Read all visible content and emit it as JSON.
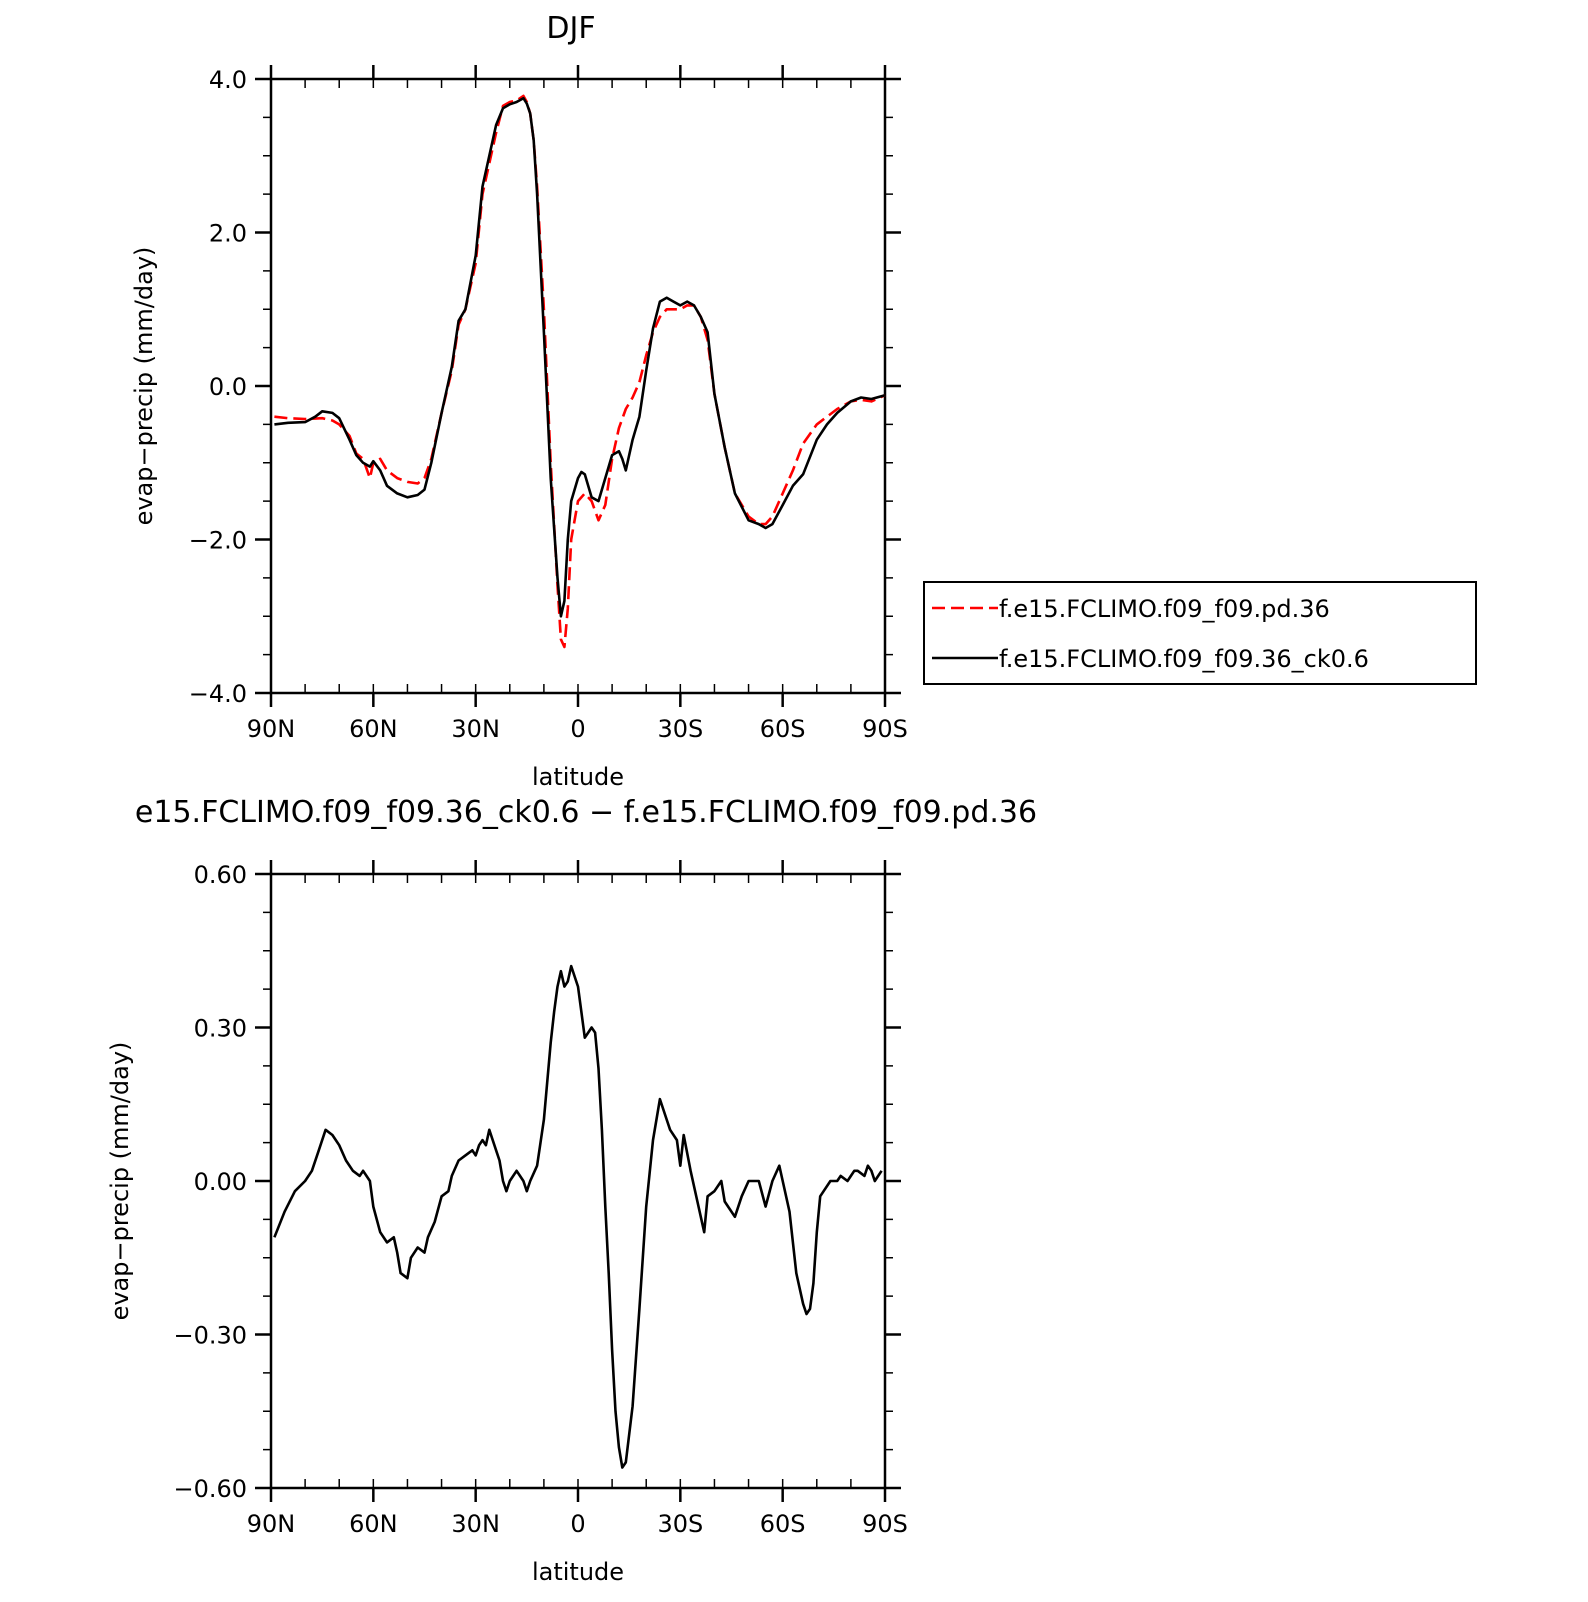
{
  "figure": {
    "top_title": "DJF",
    "bottom_title": "e15.FCLIMO.f09_f09.36_ck0.6 − f.e15.FCLIMO.f09_f09.pd.36"
  },
  "chart_data": [
    {
      "type": "line",
      "title": "DJF",
      "xlabel": "latitude",
      "ylabel": "evap−precip (mm/day)",
      "xlim": [
        90,
        -90
      ],
      "ylim": [
        -4.0,
        4.0
      ],
      "x_ticks": [
        90,
        60,
        30,
        0,
        -30,
        -60,
        -90
      ],
      "x_tick_labels": [
        "90N",
        "60N",
        "30N",
        "0",
        "30S",
        "60S",
        "90S"
      ],
      "y_ticks": [
        4.0,
        2.0,
        0.0,
        -2.0,
        -4.0
      ],
      "y_tick_labels": [
        "4.0",
        "2.0",
        "0.0",
        "−2.0",
        "−4.0"
      ],
      "grid": false,
      "legend_position": "right",
      "series": [
        {
          "name": "f.e15.FCLIMO.f09_f09.pd.36",
          "color": "#ff0000",
          "dash": "dashed",
          "x": [
            89,
            85,
            80,
            75,
            72,
            70,
            67,
            65,
            63,
            61,
            60,
            58,
            56,
            53,
            50,
            47,
            45,
            43,
            40,
            37,
            35,
            33,
            30,
            28,
            26,
            24,
            22,
            20,
            18,
            16,
            15,
            14,
            13,
            12,
            10,
            8,
            6,
            5,
            4,
            3,
            2,
            0,
            -2,
            -4,
            -6,
            -8,
            -10,
            -12,
            -14,
            -16,
            -18,
            -20,
            -22,
            -24,
            -26,
            -28,
            -30,
            -32,
            -34,
            -36,
            -38,
            -40,
            -43,
            -46,
            -50,
            -53,
            -55,
            -57,
            -60,
            -63,
            -66,
            -70,
            -73,
            -76,
            -80,
            -83,
            -86,
            -90
          ],
          "y": [
            -0.4,
            -0.42,
            -0.43,
            -0.42,
            -0.45,
            -0.5,
            -0.65,
            -0.88,
            -0.95,
            -1.2,
            -1.0,
            -0.95,
            -1.1,
            -1.2,
            -1.25,
            -1.27,
            -1.2,
            -0.95,
            -0.35,
            0.2,
            0.8,
            1.0,
            1.6,
            2.5,
            2.9,
            3.3,
            3.65,
            3.7,
            3.72,
            3.78,
            3.7,
            3.55,
            3.2,
            2.6,
            1.0,
            -1.0,
            -2.6,
            -3.3,
            -3.4,
            -2.9,
            -2.0,
            -1.5,
            -1.4,
            -1.5,
            -1.75,
            -1.55,
            -0.95,
            -0.55,
            -0.3,
            -0.15,
            0.05,
            0.4,
            0.7,
            0.9,
            1.0,
            1.0,
            1.0,
            1.05,
            1.05,
            0.9,
            0.6,
            -0.1,
            -0.8,
            -1.4,
            -1.7,
            -1.8,
            -1.8,
            -1.7,
            -1.4,
            -1.1,
            -0.75,
            -0.5,
            -0.4,
            -0.3,
            -0.2,
            -0.18,
            -0.2,
            -0.12
          ]
        },
        {
          "name": "f.e15.FCLIMO.f09_f09.36_ck0.6",
          "color": "#000000",
          "dash": "solid",
          "x": [
            89,
            85,
            80,
            77,
            75,
            72,
            70,
            67,
            65,
            63,
            61,
            60,
            58,
            56,
            53,
            50,
            47,
            45,
            43,
            40,
            37,
            35,
            33,
            30,
            28,
            26,
            24,
            22,
            20,
            18,
            16,
            15,
            14,
            13,
            12,
            10,
            8,
            6,
            5,
            4,
            3,
            2,
            0,
            -1,
            -2,
            -4,
            -6,
            -8,
            -10,
            -12,
            -13,
            -14,
            -16,
            -18,
            -20,
            -22,
            -24,
            -26,
            -28,
            -30,
            -32,
            -34,
            -36,
            -38,
            -40,
            -43,
            -46,
            -50,
            -53,
            -55,
            -57,
            -60,
            -63,
            -66,
            -70,
            -73,
            -76,
            -80,
            -83,
            -86,
            -90
          ],
          "y": [
            -0.5,
            -0.48,
            -0.47,
            -0.4,
            -0.33,
            -0.35,
            -0.42,
            -0.7,
            -0.9,
            -1.0,
            -1.05,
            -0.98,
            -1.1,
            -1.3,
            -1.4,
            -1.45,
            -1.42,
            -1.35,
            -1.0,
            -0.35,
            0.25,
            0.85,
            1.0,
            1.7,
            2.6,
            3.0,
            3.4,
            3.62,
            3.67,
            3.7,
            3.75,
            3.68,
            3.55,
            3.2,
            2.5,
            0.7,
            -1.2,
            -2.5,
            -3.0,
            -2.8,
            -2.0,
            -1.5,
            -1.2,
            -1.12,
            -1.15,
            -1.45,
            -1.5,
            -1.2,
            -0.9,
            -0.85,
            -0.95,
            -1.1,
            -0.7,
            -0.4,
            0.2,
            0.75,
            1.1,
            1.15,
            1.1,
            1.05,
            1.1,
            1.05,
            0.9,
            0.7,
            -0.1,
            -0.8,
            -1.4,
            -1.75,
            -1.8,
            -1.85,
            -1.8,
            -1.55,
            -1.3,
            -1.15,
            -0.7,
            -0.5,
            -0.35,
            -0.2,
            -0.15,
            -0.17,
            -0.12
          ]
        }
      ]
    },
    {
      "type": "line",
      "title": "e15.FCLIMO.f09_f09.36_ck0.6 − f.e15.FCLIMO.f09_f09.pd.36",
      "xlabel": "latitude",
      "ylabel": "evap−precip (mm/day)",
      "xlim": [
        90,
        -90
      ],
      "ylim": [
        -0.6,
        0.6
      ],
      "x_ticks": [
        90,
        60,
        30,
        0,
        -30,
        -60,
        -90
      ],
      "x_tick_labels": [
        "90N",
        "60N",
        "30N",
        "0",
        "30S",
        "60S",
        "90S"
      ],
      "y_ticks": [
        0.6,
        0.3,
        0.0,
        -0.3,
        -0.6
      ],
      "y_tick_labels": [
        "0.60",
        "0.30",
        "0.00",
        "−0.30",
        "−0.60"
      ],
      "grid": false,
      "series": [
        {
          "color": "#000000",
          "dash": "solid",
          "x": [
            89,
            86,
            83,
            80,
            78,
            76,
            74,
            72,
            70,
            68,
            66,
            64,
            63,
            61,
            60,
            58,
            56,
            54,
            53,
            52,
            50,
            49,
            47,
            45,
            44,
            42,
            40,
            38,
            37,
            35,
            33,
            31,
            30,
            29,
            28,
            27,
            26,
            24,
            23,
            22,
            21,
            20,
            19,
            18,
            17,
            16,
            15,
            14,
            12,
            10,
            8,
            7,
            6,
            5,
            4,
            3,
            2,
            0,
            -1,
            -2,
            -3,
            -4,
            -5,
            -6,
            -7,
            -8,
            -9,
            -10,
            -11,
            -12,
            -13,
            -14,
            -16,
            -18,
            -20,
            -22,
            -24,
            -26,
            -27,
            -29,
            -30,
            -31,
            -33,
            -35,
            -37,
            -38,
            -40,
            -42,
            -43,
            -44,
            -46,
            -48,
            -50,
            -51,
            -53,
            -55,
            -57,
            -59,
            -60,
            -62,
            -63,
            -64,
            -66,
            -67,
            -68,
            -69,
            -70,
            -71,
            -72,
            -74,
            -76,
            -77,
            -79,
            -80,
            -81,
            -82,
            -84,
            -85,
            -86,
            -87,
            -88,
            -89
          ],
          "y": [
            -0.11,
            -0.06,
            -0.02,
            0.0,
            0.02,
            0.06,
            0.1,
            0.09,
            0.07,
            0.04,
            0.02,
            0.01,
            0.02,
            0.0,
            -0.05,
            -0.1,
            -0.12,
            -0.11,
            -0.14,
            -0.18,
            -0.19,
            -0.15,
            -0.13,
            -0.14,
            -0.11,
            -0.08,
            -0.03,
            -0.02,
            0.01,
            0.04,
            0.05,
            0.06,
            0.05,
            0.07,
            0.08,
            0.07,
            0.1,
            0.06,
            0.04,
            0.0,
            -0.02,
            0.0,
            0.01,
            0.02,
            0.01,
            0.0,
            -0.02,
            0.0,
            0.03,
            0.12,
            0.27,
            0.33,
            0.38,
            0.41,
            0.38,
            0.39,
            0.42,
            0.38,
            0.33,
            0.28,
            0.29,
            0.3,
            0.29,
            0.22,
            0.1,
            -0.05,
            -0.18,
            -0.33,
            -0.45,
            -0.52,
            -0.56,
            -0.55,
            -0.44,
            -0.25,
            -0.05,
            0.08,
            0.16,
            0.12,
            0.1,
            0.08,
            0.03,
            0.09,
            0.02,
            -0.04,
            -0.1,
            -0.03,
            -0.02,
            0.0,
            -0.04,
            -0.05,
            -0.07,
            -0.03,
            0.0,
            0.0,
            0.0,
            -0.05,
            0.0,
            0.03,
            0.0,
            -0.06,
            -0.12,
            -0.18,
            -0.24,
            -0.26,
            -0.25,
            -0.2,
            -0.1,
            -0.03,
            -0.02,
            0.0,
            0.0,
            0.01,
            0.0,
            0.01,
            0.02,
            0.02,
            0.01,
            0.03,
            0.02,
            0.0,
            0.01,
            0.02
          ]
        }
      ]
    }
  ]
}
